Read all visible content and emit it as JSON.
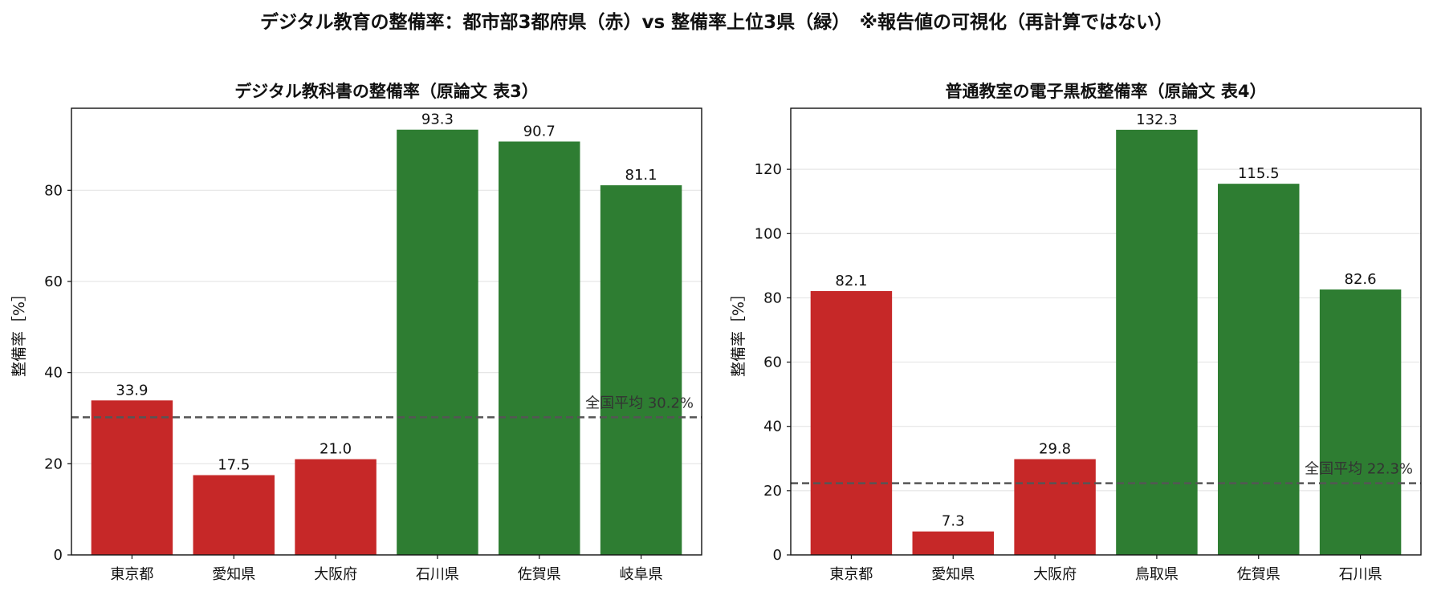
{
  "suptitle": "デジタル教育の整備率：都市部3都府県（赤）vs 整備率上位3県（緑）　※報告値の可視化（再計算ではない）",
  "colors": {
    "urban": "#c62828",
    "top": "#2e7d32",
    "avg_line": "#555555",
    "grid": "#e6e6e6"
  },
  "chart_data": [
    {
      "type": "bar",
      "title": "デジタル教科書の整備率（原論文 表3）",
      "ylabel": "整備率［%］",
      "xlabel": "",
      "ylim": [
        0,
        98
      ],
      "yticks": [
        0,
        20,
        40,
        60,
        80
      ],
      "grid": "y",
      "categories": [
        "東京都",
        "愛知県",
        "大阪府",
        "石川県",
        "佐賀県",
        "岐阜県"
      ],
      "values": [
        33.9,
        17.5,
        21.0,
        93.3,
        90.7,
        81.1
      ],
      "value_labels": [
        "33.9",
        "17.5",
        "21.0",
        "93.3",
        "90.7",
        "81.1"
      ],
      "groups": [
        "urban",
        "urban",
        "urban",
        "top",
        "top",
        "top"
      ],
      "reference_line": {
        "value": 30.2,
        "label": "全国平均 30.2%"
      }
    },
    {
      "type": "bar",
      "title": "普通教室の電子黒板整備率（原論文 表4）",
      "ylabel": "整備率［%］",
      "xlabel": "",
      "ylim": [
        0,
        139
      ],
      "yticks": [
        0,
        20,
        40,
        60,
        80,
        100,
        120
      ],
      "grid": "y",
      "categories": [
        "東京都",
        "愛知県",
        "大阪府",
        "鳥取県",
        "佐賀県",
        "石川県"
      ],
      "values": [
        82.1,
        7.3,
        29.8,
        132.3,
        115.5,
        82.6
      ],
      "value_labels": [
        "82.1",
        "7.3",
        "29.8",
        "132.3",
        "115.5",
        "82.6"
      ],
      "groups": [
        "urban",
        "urban",
        "urban",
        "top",
        "top",
        "top"
      ],
      "reference_line": {
        "value": 22.3,
        "label": "全国平均 22.3%"
      }
    }
  ]
}
